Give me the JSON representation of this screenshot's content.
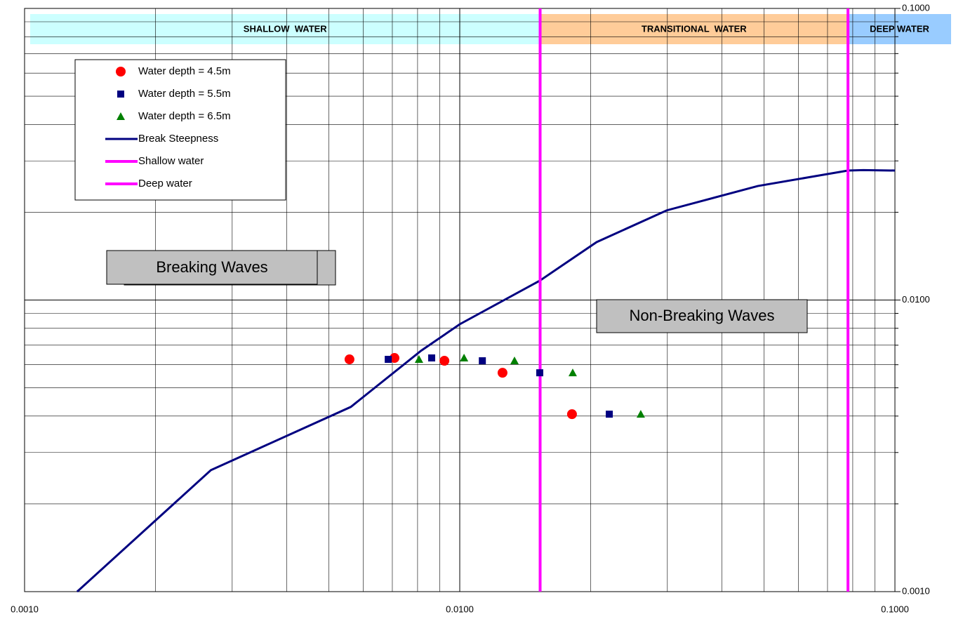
{
  "chart_data": {
    "type": "scatter",
    "log_x": true,
    "log_y": true,
    "grid": true,
    "minor_grid": true,
    "xlim": [
      0.001,
      0.1
    ],
    "ylim": [
      0.001,
      0.1
    ],
    "xticks": [
      {
        "value": 0.001,
        "label": "0.0010"
      },
      {
        "value": 0.01,
        "label": "0.0100"
      },
      {
        "value": 0.1,
        "label": "0.1000"
      }
    ],
    "yticks": [
      {
        "value": 0.001,
        "label": "0.0010"
      },
      {
        "value": 0.01,
        "label": "0.0100"
      },
      {
        "value": 0.1,
        "label": "0.1000"
      }
    ],
    "bands": [
      {
        "label": "SHALLOW  WATER",
        "from": 0.001,
        "to": 0.0153,
        "color": "#ccffff"
      },
      {
        "label": "TRANSITIONAL  WATER",
        "from": 0.0153,
        "to": 0.078,
        "color": "#ffcc99"
      },
      {
        "label": "DEEP WATER",
        "from": 0.078,
        "to": 0.1,
        "color": "#99ccff"
      }
    ],
    "series": [
      {
        "name": "Water depth = 4.5m",
        "color": "#ff0000",
        "marker": "circle",
        "x": [
          0.00558,
          0.00708,
          0.00922,
          0.01254,
          0.01811
        ],
        "values": [
          0.00626,
          0.00633,
          0.00619,
          0.00563,
          0.00406
        ]
      },
      {
        "name": "Water depth = 5.5m",
        "color": "#000080",
        "marker": "square",
        "x": [
          0.00685,
          0.00862,
          0.01127,
          0.01527,
          0.02206
        ],
        "values": [
          0.00626,
          0.00633,
          0.00619,
          0.00563,
          0.00406
        ]
      },
      {
        "name": "Water depth = 6.5m",
        "color": "#008000",
        "marker": "triangle",
        "x": [
          0.00806,
          0.01023,
          0.01336,
          0.01818,
          0.02606
        ],
        "values": [
          0.00626,
          0.00633,
          0.00619,
          0.00563,
          0.00406
        ]
      }
    ],
    "line": {
      "name": "Break Steepness",
      "color": "#000080",
      "x": [
        0.001321,
        0.00268,
        0.00562,
        0.00815,
        0.01,
        0.01527,
        0.02063,
        0.0299,
        0.0484,
        0.078,
        0.0846,
        0.1
      ],
      "values": [
        0.001,
        0.00261,
        0.0043,
        0.0067,
        0.00826,
        0.01165,
        0.0158,
        0.0203,
        0.0246,
        0.0278,
        0.0279,
        0.0278
      ]
    },
    "vlines": [
      {
        "name": "Shallow water",
        "color": "#ff00ff",
        "x": 0.0153
      },
      {
        "name": "Deep water",
        "color": "#ff00ff",
        "x": 0.078
      }
    ],
    "annotations": [
      "Breaking Waves",
      "Non-Breaking Waves"
    ]
  }
}
